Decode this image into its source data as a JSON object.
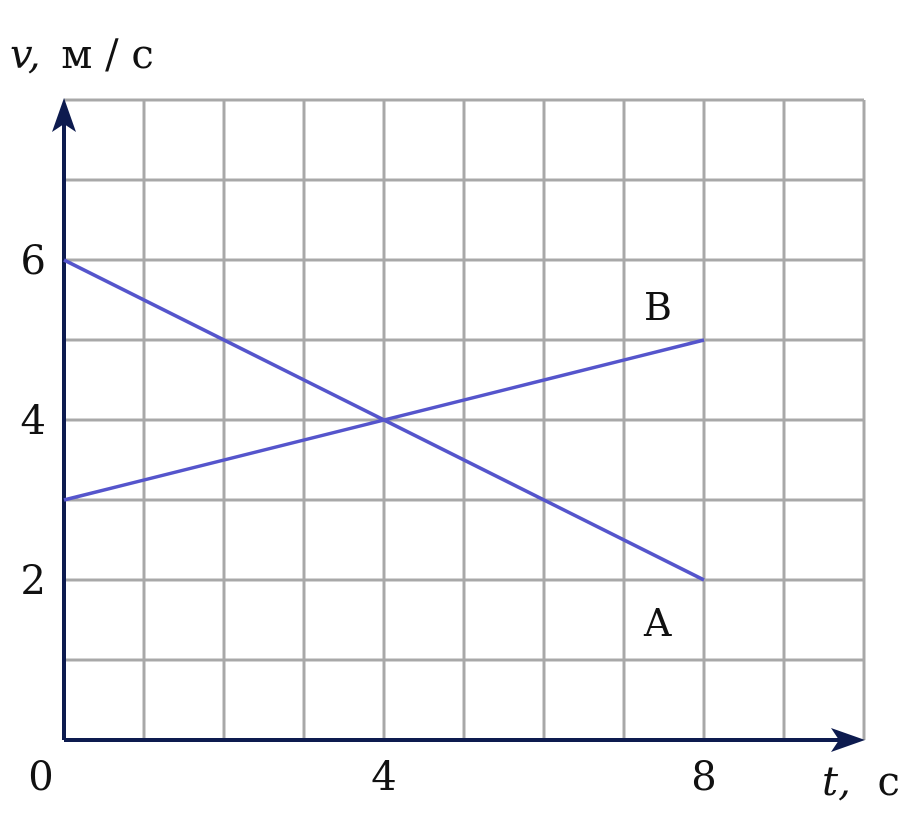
{
  "chart_data": {
    "type": "line",
    "x": {
      "min": 0,
      "max": 10,
      "grid_step": 1,
      "tick_values": [
        0,
        4,
        8
      ],
      "tick_labels": [
        "0",
        "4",
        "8"
      ]
    },
    "y": {
      "min": 0,
      "max": 8,
      "grid_step": 1,
      "tick_values": [
        2,
        4,
        6
      ],
      "tick_labels": [
        "2",
        "4",
        "6"
      ]
    },
    "xlabel": {
      "symbol": "t,",
      "unit": "с"
    },
    "ylabel": {
      "symbol": "v,",
      "unit": "м / с"
    },
    "grid": true,
    "series": [
      {
        "name": "A",
        "points": [
          [
            0,
            6
          ],
          [
            8,
            2
          ]
        ]
      },
      {
        "name": "B",
        "points": [
          [
            0,
            3
          ],
          [
            8,
            5
          ]
        ]
      }
    ],
    "colors": {
      "series": "#5555cc",
      "axis": "#0d1b4f",
      "grid": "#a8a8a8"
    }
  }
}
